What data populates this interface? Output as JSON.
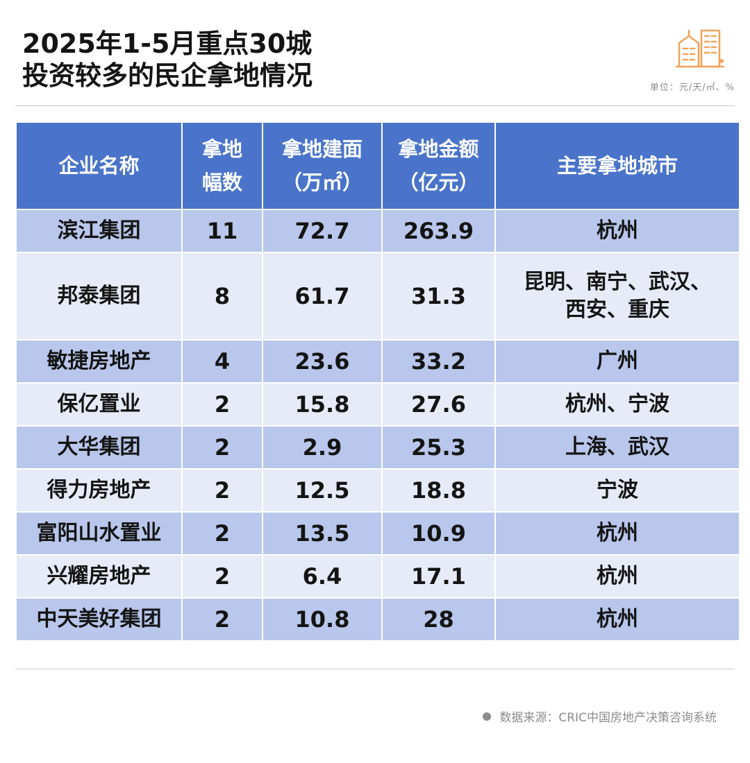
{
  "title_lines": [
    "2025年1-5月重点30城",
    "投资较多的民企拿地情况"
  ],
  "unit_note": "单位：元/天/㎡、%",
  "source": "数据来源：CRIC中国房地产决策咨询系统",
  "colors": {
    "header_bg": "#4a74c9",
    "row_dark": "#b8c7eb",
    "row_light": "#e7ebf8",
    "logo": "#f0a35a"
  },
  "header": {
    "company": "企业名称",
    "count_lines": [
      "拿地",
      "幅数"
    ],
    "area_lines": [
      "拿地建面",
      "（万㎡）"
    ],
    "amount_lines": [
      "拿地金额",
      "（亿元）"
    ],
    "cities": "主要拿地城市"
  },
  "chart_data": {
    "type": "table",
    "columns": [
      "企业名称",
      "拿地幅数",
      "拿地建面（万㎡）",
      "拿地金额（亿元）",
      "主要拿地城市"
    ],
    "rows": [
      {
        "company": "滨江集团",
        "count": "11",
        "area": "72.7",
        "amount": "263.9",
        "city_lines": [
          "杭州"
        ]
      },
      {
        "company": "邦泰集团",
        "count": "8",
        "area": "61.7",
        "amount": "31.3",
        "city_lines": [
          "昆明、南宁、武汉、",
          "西安、重庆"
        ]
      },
      {
        "company": "敏捷房地产",
        "count": "4",
        "area": "23.6",
        "amount": "33.2",
        "city_lines": [
          "广州"
        ]
      },
      {
        "company": "保亿置业",
        "count": "2",
        "area": "15.8",
        "amount": "27.6",
        "city_lines": [
          "杭州、宁波"
        ]
      },
      {
        "company": "大华集团",
        "count": "2",
        "area": "2.9",
        "amount": "25.3",
        "city_lines": [
          "上海、武汉"
        ]
      },
      {
        "company": "得力房地产",
        "count": "2",
        "area": "12.5",
        "amount": "18.8",
        "city_lines": [
          "宁波"
        ]
      },
      {
        "company": "富阳山水置业",
        "count": "2",
        "area": "13.5",
        "amount": "10.9",
        "city_lines": [
          "杭州"
        ]
      },
      {
        "company": "兴耀房地产",
        "count": "2",
        "area": "6.4",
        "amount": "17.1",
        "city_lines": [
          "杭州"
        ]
      },
      {
        "company": "中天美好集团",
        "count": "2",
        "area": "10.8",
        "amount": "28",
        "city_lines": [
          "杭州"
        ]
      }
    ]
  }
}
